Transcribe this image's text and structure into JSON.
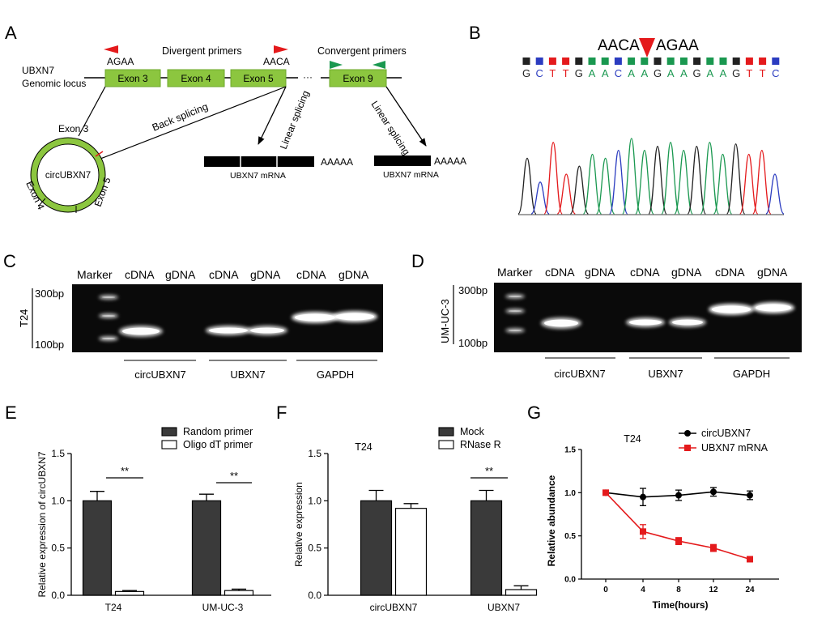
{
  "panels": {
    "A": {
      "letter": "A",
      "locus_label_1": "UBXN7",
      "locus_label_2": "Genomic locus",
      "divergent_label": "Divergent primers",
      "convergent_label": "Convergent primers",
      "seq_left": "AGAA",
      "seq_right": "AACA",
      "ellipsis": "···",
      "exons": [
        "Exon 3",
        "Exon 4",
        "Exon 5",
        "Exon 9"
      ],
      "back_splicing": "Back splicing",
      "linear_splicing": "Linear splicing",
      "circ_label": "circUBXN7",
      "circ_exon3": "Exon 3",
      "circ_exon4": "Exon 4",
      "circ_exon5": "Exon 5",
      "polyA": "AAAAA",
      "mrna_label": "UBXN7 mRNA",
      "colors": {
        "exon": "#8cc63f",
        "primer_red": "#e41a1c",
        "primer_green": "#1a9850"
      }
    },
    "B": {
      "letter": "B",
      "junction_left": "AACA",
      "junction_right": "AGAA",
      "bases": [
        "G",
        "C",
        "T",
        "T",
        "G",
        "A",
        "A",
        "C",
        "A",
        "A",
        "G",
        "A",
        "A",
        "G",
        "A",
        "A",
        "G",
        "T",
        "T",
        "C"
      ],
      "base_colors": {
        "A": "#1a9850",
        "C": "#2b3cc0",
        "G": "#222222",
        "T": "#e41a1c"
      }
    },
    "C": {
      "letter": "C",
      "cell_line": "T24",
      "marker_label": "Marker",
      "lanes": [
        "cDNA",
        "gDNA",
        "cDNA",
        "gDNA",
        "cDNA",
        "gDNA"
      ],
      "size_top": "300bp",
      "size_bottom": "100bp",
      "groups": [
        "circUBXN7",
        "UBXN7",
        "GAPDH"
      ]
    },
    "D": {
      "letter": "D",
      "cell_line": "UM-UC-3",
      "marker_label": "Marker",
      "lanes": [
        "cDNA",
        "gDNA",
        "cDNA",
        "gDNA",
        "cDNA",
        "gDNA"
      ],
      "size_top": "300bp",
      "size_bottom": "100bp",
      "groups": [
        "circUBXN7",
        "UBXN7",
        "GAPDH"
      ]
    },
    "E": {
      "letter": "E",
      "sig": "**"
    },
    "F": {
      "letter": "F",
      "title": "T24",
      "sig": "**"
    },
    "G": {
      "letter": "G",
      "title": "T24"
    }
  },
  "chart_data": [
    {
      "id": "E",
      "type": "bar",
      "categories": [
        "T24",
        "UM-UC-3"
      ],
      "series": [
        {
          "name": "Random primer",
          "values": [
            1.0,
            1.0
          ],
          "errors": [
            0.1,
            0.07
          ],
          "fill": "#3a3a3a"
        },
        {
          "name": "Oligo dT primer",
          "values": [
            0.04,
            0.05
          ],
          "errors": [
            0.01,
            0.015
          ],
          "fill": "#ffffff"
        }
      ],
      "ylabel": "Relative expression of circUBXN7",
      "ylim": [
        0,
        1.5
      ],
      "yticks": [
        "0.0",
        "0.5",
        "1.0",
        "1.5"
      ]
    },
    {
      "id": "F",
      "type": "bar",
      "categories": [
        "circUBXN7",
        "UBXN7"
      ],
      "series": [
        {
          "name": "Mock",
          "values": [
            1.0,
            1.0
          ],
          "errors": [
            0.11,
            0.11
          ],
          "fill": "#3a3a3a"
        },
        {
          "name": "RNase R",
          "values": [
            0.92,
            0.06
          ],
          "errors": [
            0.05,
            0.04
          ],
          "fill": "#ffffff"
        }
      ],
      "ylabel": "Relative expression",
      "ylim": [
        0,
        1.5
      ],
      "yticks": [
        "0.0",
        "0.5",
        "1.0",
        "1.5"
      ]
    },
    {
      "id": "G",
      "type": "line",
      "x": [
        0,
        4,
        8,
        12,
        24
      ],
      "xticks": [
        "0",
        "4",
        "8",
        "12",
        "24"
      ],
      "series": [
        {
          "name": "circUBXN7",
          "values": [
            1.0,
            0.95,
            0.97,
            1.01,
            0.97
          ],
          "errors": [
            0.02,
            0.1,
            0.06,
            0.05,
            0.05
          ],
          "color": "#000000",
          "marker": "circle"
        },
        {
          "name": "UBXN7  mRNA",
          "values": [
            1.0,
            0.55,
            0.44,
            0.36,
            0.23
          ],
          "errors": [
            0.02,
            0.08,
            0.04,
            0.04,
            0.02
          ],
          "color": "#e41a1c",
          "marker": "square"
        }
      ],
      "xlabel": "Time(hours)",
      "ylabel": "Relative abundance",
      "ylim": [
        0,
        1.5
      ],
      "yticks": [
        "0.0",
        "0.5",
        "1.0",
        "1.5"
      ]
    }
  ]
}
